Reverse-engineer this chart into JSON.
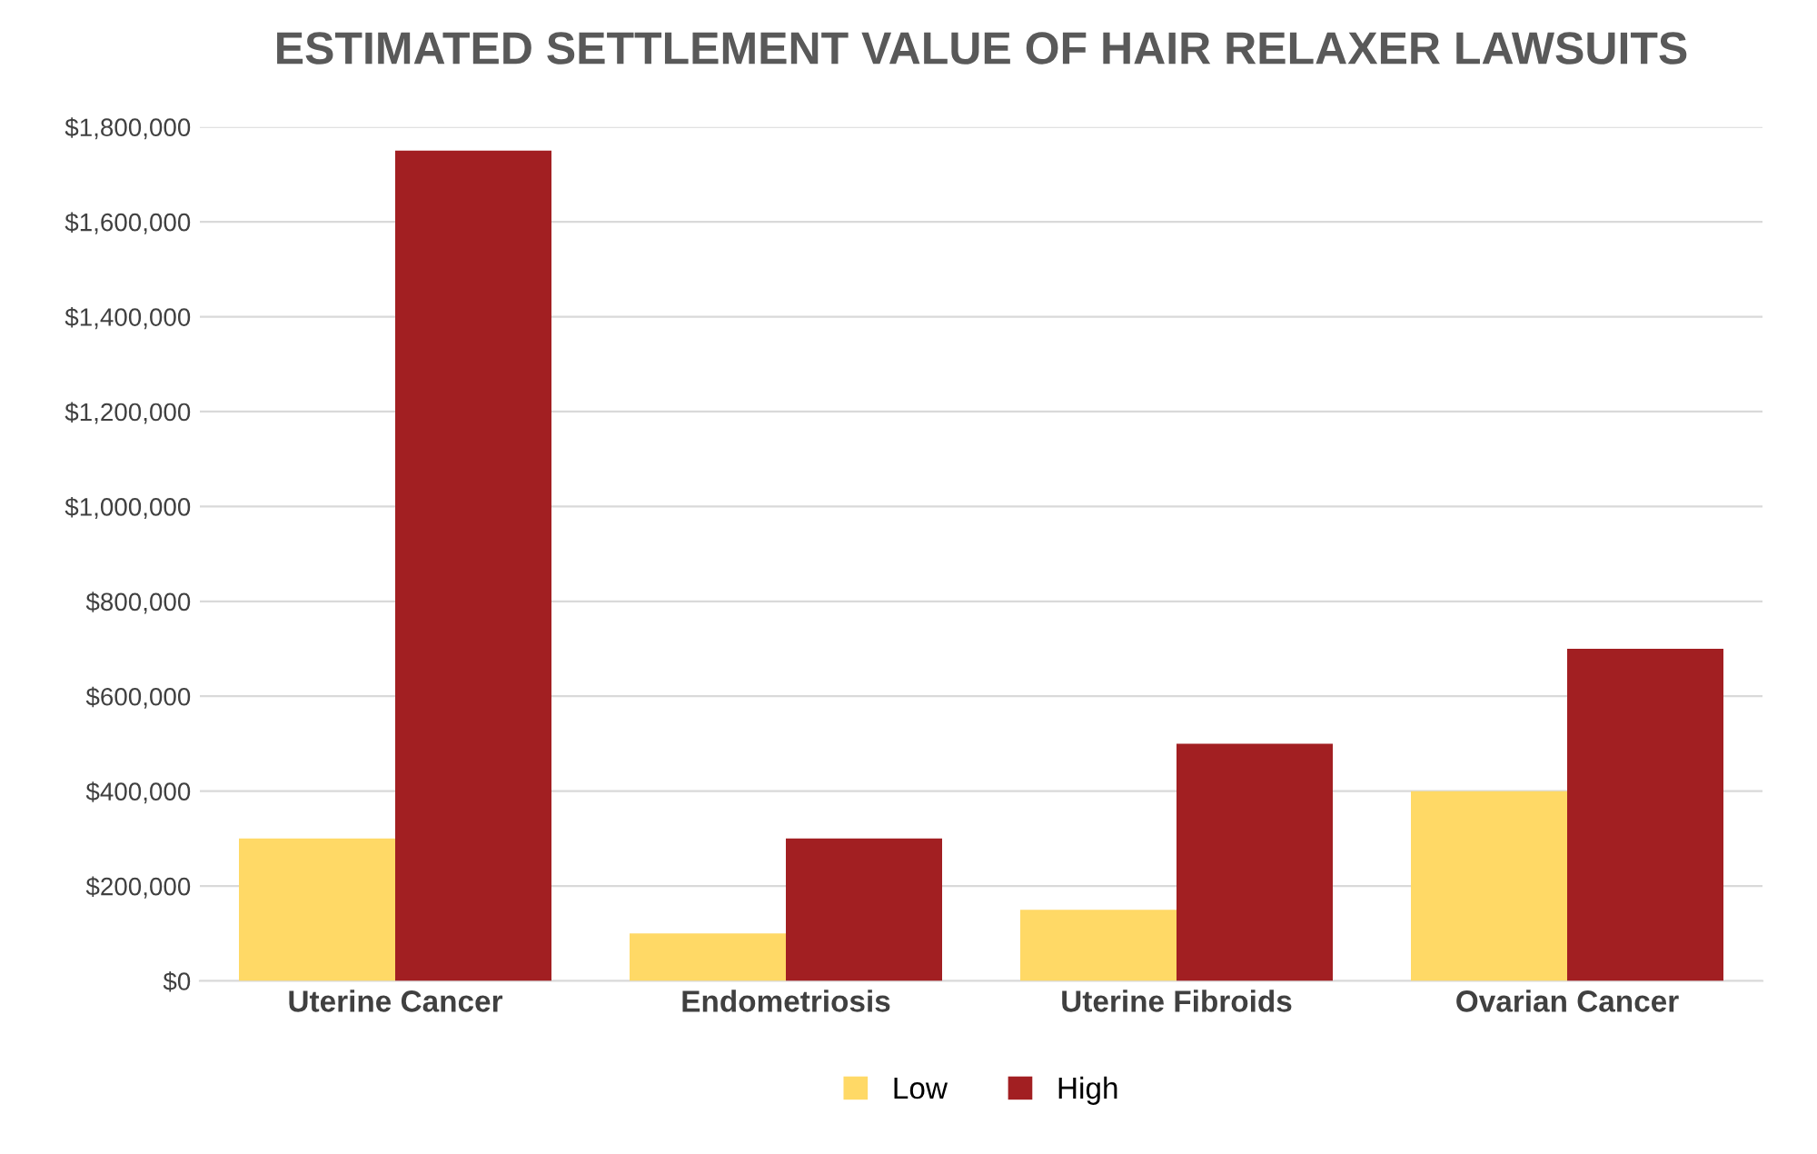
{
  "chart_data": {
    "type": "bar",
    "title": "ESTIMATED SETTLEMENT VALUE OF HAIR RELAXER LAWSUITS",
    "categories": [
      "Uterine Cancer",
      "Endometriosis",
      "Uterine Fibroids",
      "Ovarian Cancer"
    ],
    "series": [
      {
        "name": "Low",
        "color": "#ffd966",
        "values": [
          300000,
          100000,
          150000,
          400000
        ]
      },
      {
        "name": "High",
        "color": "#a21f22",
        "values": [
          1750000,
          300000,
          500000,
          700000
        ]
      }
    ],
    "ylim": [
      0,
      1800000
    ],
    "yticks": [
      {
        "value": 0,
        "label": "$0"
      },
      {
        "value": 200000,
        "label": "$200,000"
      },
      {
        "value": 400000,
        "label": "$400,000"
      },
      {
        "value": 600000,
        "label": "$600,000"
      },
      {
        "value": 800000,
        "label": "$800,000"
      },
      {
        "value": 1000000,
        "label": "$1,000,000"
      },
      {
        "value": 1200000,
        "label": "$1,200,000"
      },
      {
        "value": 1400000,
        "label": "$1,400,000"
      },
      {
        "value": 1600000,
        "label": "$1,600,000"
      },
      {
        "value": 1800000,
        "label": "$1,800,000"
      }
    ],
    "grid": "y",
    "legend": "bottom"
  }
}
